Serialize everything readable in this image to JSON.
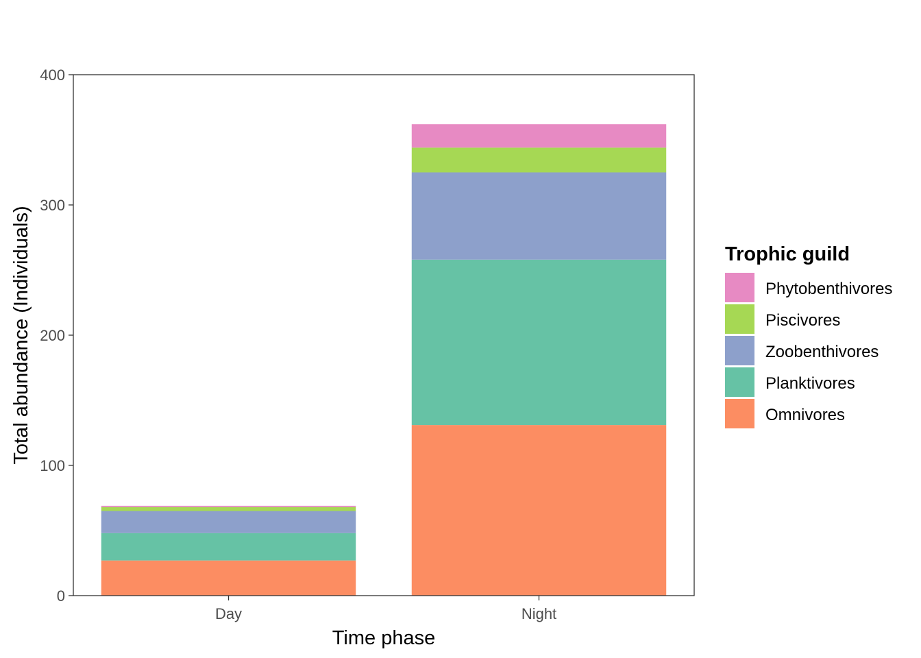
{
  "chart_data": {
    "type": "bar",
    "stacked": true,
    "categories": [
      "Day",
      "Night"
    ],
    "series": [
      {
        "name": "Omnivores",
        "color": "#FC8D62",
        "values": [
          27,
          131
        ]
      },
      {
        "name": "Planktivores",
        "color": "#66C2A5",
        "values": [
          21,
          127
        ]
      },
      {
        "name": "Zoobenthivores",
        "color": "#8DA0CB",
        "values": [
          17,
          67
        ]
      },
      {
        "name": "Piscivores",
        "color": "#A6D854",
        "values": [
          3,
          19
        ]
      },
      {
        "name": "Phytobenthivores",
        "color": "#E78AC3",
        "values": [
          1,
          18
        ]
      }
    ],
    "xlabel": "Time phase",
    "ylabel": "Total abundance (Individuals)",
    "ylim": [
      0,
      400
    ],
    "yticks": [
      0,
      100,
      200,
      300,
      400
    ],
    "grid": false,
    "legend": {
      "title": "Trophic guild",
      "position": "right",
      "order": [
        "Phytobenthivores",
        "Piscivores",
        "Zoobenthivores",
        "Planktivores",
        "Omnivores"
      ]
    }
  }
}
